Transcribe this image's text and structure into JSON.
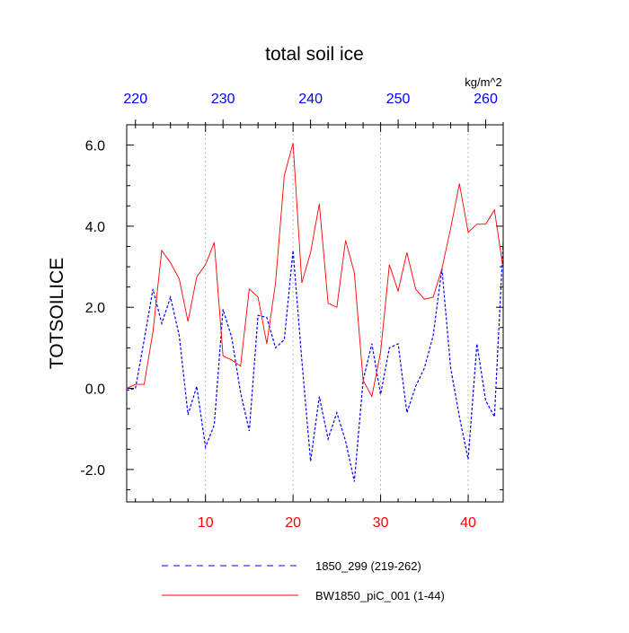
{
  "chart_data": {
    "type": "line",
    "title": "total soil ice",
    "ylabel": "TOTSOILICE",
    "units": "kg/m^2",
    "xlim": [
      1,
      44
    ],
    "ylim": [
      -2.8,
      6.5
    ],
    "x_ticks": [
      10,
      20,
      30,
      40
    ],
    "x_tick_labels": [
      "10",
      "20",
      "30",
      "40"
    ],
    "top_x_ticks": [
      220,
      230,
      240,
      250,
      260
    ],
    "top_x_tick_labels": [
      "220",
      "230",
      "240",
      "250",
      "260"
    ],
    "top_xlim": [
      219,
      262
    ],
    "y_ticks": [
      -2.0,
      0.0,
      2.0,
      4.0,
      6.0
    ],
    "y_tick_labels": [
      "-2.0",
      "0.0",
      "2.0",
      "4.0",
      "6.0"
    ],
    "vertical_gridlines_at": [
      10,
      20,
      30,
      40
    ],
    "x": [
      1,
      2,
      3,
      4,
      5,
      6,
      7,
      8,
      9,
      10,
      11,
      12,
      13,
      14,
      15,
      16,
      17,
      18,
      19,
      20,
      21,
      22,
      23,
      24,
      25,
      26,
      27,
      28,
      29,
      30,
      31,
      32,
      33,
      34,
      35,
      36,
      37,
      38,
      39,
      40,
      41,
      42,
      43,
      44
    ],
    "series": [
      {
        "name": "1850_299 (219-262)",
        "style": "dashed",
        "color": "#0000ff",
        "values": [
          -0.05,
          0.0,
          1.2,
          2.45,
          1.6,
          2.25,
          1.3,
          -0.65,
          0.05,
          -1.45,
          -0.9,
          1.95,
          1.25,
          -0.1,
          -1.05,
          1.8,
          1.75,
          1.0,
          1.2,
          3.4,
          0.7,
          -1.8,
          -0.2,
          -1.25,
          -0.6,
          -1.3,
          -2.3,
          0.2,
          1.1,
          -0.15,
          1.0,
          1.1,
          -0.6,
          0.05,
          0.5,
          1.3,
          2.95,
          0.5,
          -0.7,
          -1.75,
          1.1,
          -0.3,
          -0.7,
          3.6
        ]
      },
      {
        "name": "BW1850_piC_001 (1-44)",
        "style": "solid",
        "color": "#ff0000",
        "values": [
          0.0,
          0.1,
          0.1,
          1.4,
          3.4,
          3.1,
          2.7,
          1.65,
          2.75,
          3.05,
          3.6,
          0.8,
          0.7,
          0.55,
          2.45,
          2.25,
          1.1,
          2.6,
          5.25,
          6.05,
          2.6,
          3.35,
          4.55,
          2.1,
          2.0,
          3.65,
          2.85,
          0.2,
          -0.2,
          0.9,
          3.05,
          2.4,
          3.35,
          2.45,
          2.2,
          2.25,
          2.95,
          3.95,
          5.05,
          3.85,
          4.05,
          4.05,
          4.4,
          2.95
        ]
      }
    ],
    "legend": [
      {
        "label": "1850_299 (219-262)",
        "style": "dashed",
        "color": "#0000ff"
      },
      {
        "label": "BW1850_piC_001 (1-44)",
        "style": "solid",
        "color": "#ff0000"
      }
    ],
    "legend_position": "bottom"
  }
}
